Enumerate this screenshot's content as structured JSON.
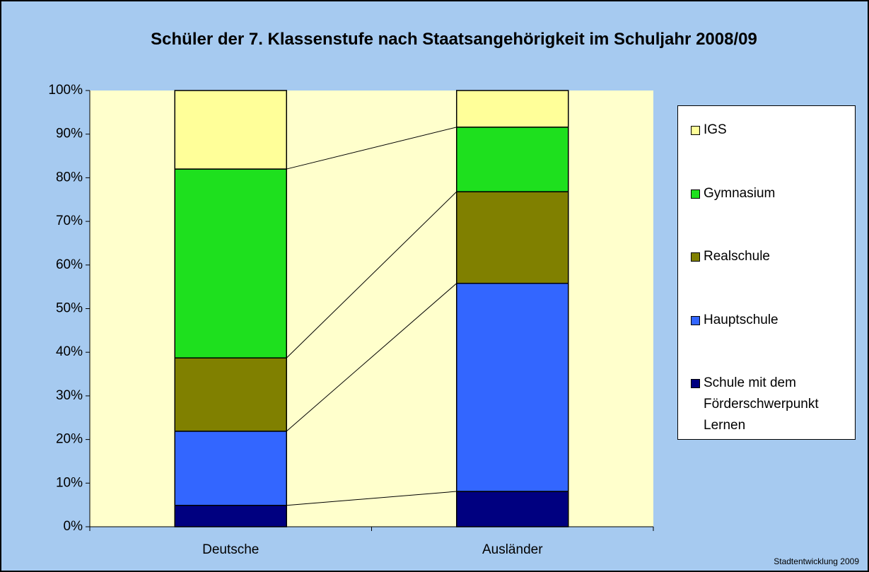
{
  "chart_data": {
    "type": "stacked_bar_100",
    "title": "Schüler der 7. Klassenstufe nach Staatsangehörigkeit im Schuljahr 2008/09",
    "categories": [
      "Deutsche",
      "Ausländer"
    ],
    "series": [
      {
        "name": "Schule mit dem Förderschwerpunkt Lernen",
        "color": "#000080",
        "values": [
          4.9,
          8.1
        ]
      },
      {
        "name": "Hauptschule",
        "color": "#3366ff",
        "values": [
          17.0,
          47.7
        ]
      },
      {
        "name": "Realschule",
        "color": "#808000",
        "values": [
          16.8,
          21.0
        ]
      },
      {
        "name": "Gymnasium",
        "color": "#1ee01e",
        "values": [
          43.3,
          14.8
        ]
      },
      {
        "name": "IGS",
        "color": "#ffff99",
        "values": [
          18.0,
          8.4
        ]
      }
    ],
    "ylim": [
      0,
      100
    ],
    "yticks": [
      {
        "value": 0,
        "label": "0%"
      },
      {
        "value": 10,
        "label": "10%"
      },
      {
        "value": 20,
        "label": "20%"
      },
      {
        "value": 30,
        "label": "30%"
      },
      {
        "value": 40,
        "label": "40%"
      },
      {
        "value": 50,
        "label": "50%"
      },
      {
        "value": 60,
        "label": "60%"
      },
      {
        "value": 70,
        "label": "70%"
      },
      {
        "value": 80,
        "label": "80%"
      },
      {
        "value": 90,
        "label": "90%"
      },
      {
        "value": 100,
        "label": "100%"
      }
    ],
    "legend": "right",
    "footnote": "Stadtentwicklung 2009"
  }
}
